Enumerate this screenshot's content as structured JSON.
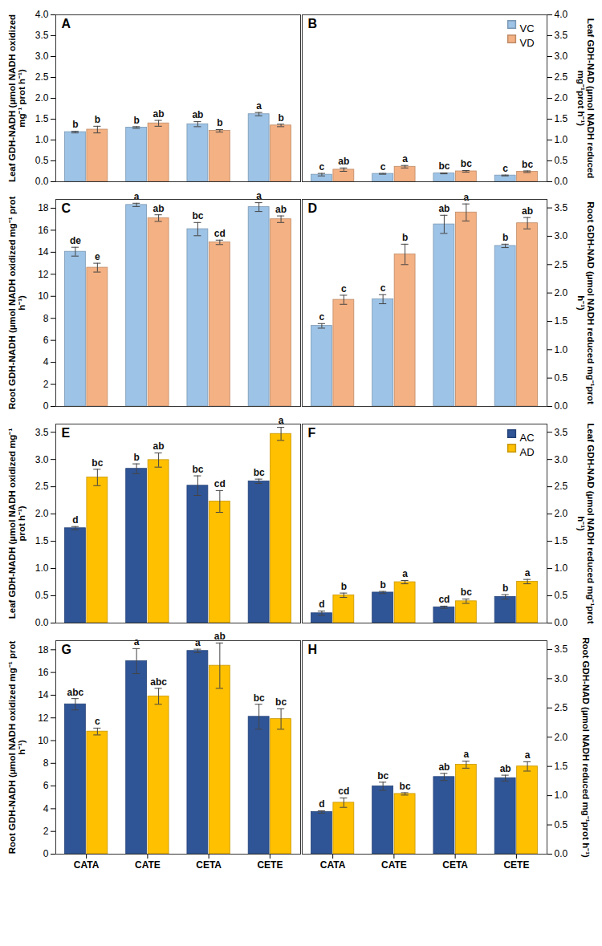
{
  "chart_data": [
    {
      "type": "bar",
      "title": "A",
      "ylabel": "Leaf GDH-NADH (µmol NADH oxidized mg⁻¹ prot h⁻¹)",
      "categories": [
        "CATA",
        "CATE",
        "CETA",
        "CETE"
      ],
      "series": [
        {
          "name": "VC",
          "color": "#9dc3e6",
          "values": [
            1.19,
            1.3,
            1.38,
            1.62
          ],
          "errors": [
            0.02,
            0.02,
            0.06,
            0.04
          ],
          "letters": [
            "b",
            "b",
            "ab",
            "a"
          ]
        },
        {
          "name": "VD",
          "color": "#f4b183",
          "values": [
            1.25,
            1.4,
            1.22,
            1.35
          ],
          "errors": [
            0.08,
            0.07,
            0.03,
            0.03
          ],
          "letters": [
            "b",
            "ab",
            "b",
            "b"
          ]
        }
      ],
      "ylim": [
        0,
        4
      ],
      "yticks": [
        {
          "value": 0,
          "label": "0.0"
        },
        0.5,
        {
          "value": 1,
          "label": "1.0"
        },
        1.5,
        {
          "value": 2,
          "label": "2.0"
        },
        2.5,
        {
          "value": 3,
          "label": "3.0"
        },
        3.5,
        {
          "value": 4,
          "label": "4.0"
        }
      ],
      "tick_labels": "y"
    },
    {
      "type": "bar",
      "title": "B",
      "ylabel": "Leaf GDH-NAD (µmol NADH reduced mg⁻¹prot h⁻¹)",
      "categories": [
        "CATA",
        "CATE",
        "CETA",
        "CETE"
      ],
      "series": [
        {
          "name": "VC",
          "color": "#9dc3e6",
          "axis": "y2",
          "values": [
            0.17,
            0.19,
            0.2,
            0.15
          ],
          "errors": [
            0.03,
            0.01,
            0.01,
            0.01
          ],
          "letters": [
            "c",
            "c",
            "bc",
            "c"
          ]
        },
        {
          "name": "VD",
          "color": "#f4b183",
          "axis": "y2",
          "values": [
            0.29,
            0.36,
            0.25,
            0.24
          ],
          "errors": [
            0.04,
            0.03,
            0.02,
            0.02
          ],
          "letters": [
            "ab",
            "a",
            "bc",
            "bc"
          ]
        }
      ],
      "y2lim": [
        0,
        4
      ],
      "y2ticks": [
        {
          "value": 0,
          "label": "0.0"
        },
        0.5,
        {
          "value": 1,
          "label": "1.0"
        },
        1.5,
        {
          "value": 2,
          "label": "2.0"
        },
        2.5,
        {
          "value": 3,
          "label": "3.0"
        },
        3.5,
        {
          "value": 4,
          "label": "4.0"
        }
      ],
      "legend": "top-right",
      "tick_labels": "y"
    },
    {
      "type": "bar",
      "title": "C",
      "ylabel": "Root GDH-NADH (µmol NADH oxidized mg⁻¹ prot h⁻¹)",
      "categories": [
        "CATA",
        "CATE",
        "CETA",
        "CETE"
      ],
      "series": [
        {
          "name": "VC",
          "color": "#9dc3e6",
          "values": [
            14.05,
            18.3,
            16.1,
            18.1
          ],
          "errors": [
            0.4,
            0.15,
            0.6,
            0.4
          ],
          "letters": [
            "de",
            "a",
            "bc",
            "a"
          ]
        },
        {
          "name": "VD",
          "color": "#f4b183",
          "values": [
            12.6,
            17.1,
            14.9,
            17.0
          ],
          "errors": [
            0.4,
            0.3,
            0.2,
            0.3
          ],
          "letters": [
            "e",
            "ab",
            "cd",
            "ab"
          ]
        }
      ],
      "ylim": [
        0,
        18.8
      ],
      "yticks": [
        0,
        2,
        4,
        6,
        8,
        10,
        12,
        14,
        16,
        18
      ],
      "tick_labels": "y"
    },
    {
      "type": "bar",
      "title": "D",
      "ylabel": "Root GDH-NAD (µmol NADH reduced mg⁻¹prot h⁻¹)",
      "categories": [
        "CATA",
        "CATE",
        "CETA",
        "CETE"
      ],
      "series": [
        {
          "name": "VC",
          "color": "#9dc3e6",
          "axis": "y2",
          "values": [
            1.42,
            1.89,
            3.21,
            2.83
          ],
          "errors": [
            0.04,
            0.08,
            0.16,
            0.03
          ],
          "letters": [
            "c",
            "c",
            "ab",
            "b"
          ]
        },
        {
          "name": "VD",
          "color": "#f4b183",
          "axis": "y2",
          "values": [
            1.88,
            2.68,
            3.42,
            3.23
          ],
          "errors": [
            0.08,
            0.18,
            0.15,
            0.1
          ],
          "letters": [
            "c",
            "b",
            "a",
            "ab"
          ]
        }
      ],
      "y2lim": [
        0,
        3.65
      ],
      "y2ticks": [
        {
          "value": 0,
          "label": "0.0"
        },
        0.5,
        {
          "value": 1,
          "label": "1.0"
        },
        1.5,
        {
          "value": 2,
          "label": "2.0"
        },
        2.5,
        {
          "value": 3,
          "label": "3.0"
        },
        3.5
      ],
      "tick_labels": "y"
    },
    {
      "type": "bar",
      "title": "E",
      "ylabel": "Leaf GDH-NADH (µmol NADH oxidized mg⁻¹ prot h⁻¹)",
      "categories": [
        "CATA",
        "CATE",
        "CETA",
        "CETE"
      ],
      "series": [
        {
          "name": "AC",
          "color": "#2f5597",
          "values": [
            1.74,
            2.83,
            2.52,
            2.6
          ],
          "errors": [
            0.03,
            0.09,
            0.18,
            0.04
          ],
          "letters": [
            "d",
            "b",
            "bc",
            "bc"
          ]
        },
        {
          "name": "AD",
          "color": "#ffc000",
          "values": [
            2.67,
            2.99,
            2.23,
            3.47
          ],
          "errors": [
            0.15,
            0.13,
            0.2,
            0.12
          ],
          "letters": [
            "bc",
            "ab",
            "cd",
            "a"
          ]
        }
      ],
      "ylim": [
        0,
        3.65
      ],
      "yticks": [
        {
          "value": 0,
          "label": "0.0"
        },
        0.5,
        {
          "value": 1,
          "label": "1.0"
        },
        1.5,
        {
          "value": 2,
          "label": "2.0"
        },
        2.5,
        {
          "value": 3,
          "label": "3.0"
        },
        3.5
      ],
      "tick_labels": "y"
    },
    {
      "type": "bar",
      "title": "F",
      "ylabel": "Leaf GDH-NAD (µmol NADH reduced mg⁻¹prot h⁻¹)",
      "categories": [
        "CATA",
        "CATE",
        "CETA",
        "CETE"
      ],
      "series": [
        {
          "name": "AC",
          "color": "#2f5597",
          "axis": "y2",
          "values": [
            0.18,
            0.56,
            0.29,
            0.48
          ],
          "errors": [
            0.04,
            0.02,
            0.02,
            0.04
          ],
          "letters": [
            "d",
            "b",
            "cd",
            "b"
          ]
        },
        {
          "name": "AD",
          "color": "#ffc000",
          "axis": "y2",
          "values": [
            0.51,
            0.75,
            0.4,
            0.76
          ],
          "errors": [
            0.04,
            0.03,
            0.04,
            0.04
          ],
          "letters": [
            "b",
            "a",
            "bc",
            "a"
          ]
        }
      ],
      "y2lim": [
        0,
        3.65
      ],
      "y2ticks": [
        {
          "value": 0,
          "label": "0.0"
        },
        0.5,
        {
          "value": 1,
          "label": "1.0"
        },
        1.5,
        {
          "value": 2,
          "label": "2.0"
        },
        2.5,
        {
          "value": 3,
          "label": "3.0"
        },
        3.5
      ],
      "legend": "top-right",
      "tick_labels": "y"
    },
    {
      "type": "bar",
      "title": "G",
      "ylabel": "Root GDH-NADH (µmol NADH oxidized mg⁻¹ prot h⁻¹)",
      "categories": [
        "CATA",
        "CATE",
        "CETA",
        "CETE"
      ],
      "series": [
        {
          "name": "AC",
          "color": "#2f5597",
          "values": [
            13.2,
            17.0,
            17.9,
            12.1
          ],
          "errors": [
            0.5,
            1.1,
            0.15,
            1.1
          ],
          "letters": [
            "abc",
            "a",
            "a",
            "bc"
          ]
        },
        {
          "name": "AD",
          "color": "#ffc000",
          "values": [
            10.8,
            13.9,
            16.6,
            11.9
          ],
          "errors": [
            0.3,
            0.7,
            2.0,
            0.9
          ],
          "letters": [
            "c",
            "abc",
            "ab",
            "bc"
          ]
        }
      ],
      "ylim": [
        0,
        18.8
      ],
      "yticks": [
        0,
        2,
        4,
        6,
        8,
        10,
        12,
        14,
        16,
        18
      ]
    },
    {
      "type": "bar",
      "title": "H",
      "ylabel": "Root GDH-NAD (µmol NADH reduced mg⁻¹prot h⁻¹)",
      "categories": [
        "CATA",
        "CATE",
        "CETA",
        "CETE"
      ],
      "series": [
        {
          "name": "AC",
          "color": "#2f5597",
          "axis": "y2",
          "values": [
            0.72,
            1.16,
            1.32,
            1.3
          ],
          "errors": [
            0.02,
            0.07,
            0.06,
            0.05
          ],
          "letters": [
            "d",
            "bc",
            "ab",
            "ab"
          ]
        },
        {
          "name": "AD",
          "color": "#ffc000",
          "axis": "y2",
          "values": [
            0.88,
            1.03,
            1.53,
            1.5
          ],
          "errors": [
            0.08,
            0.02,
            0.06,
            0.08
          ],
          "letters": [
            "cd",
            "bc",
            "a",
            "a"
          ]
        }
      ],
      "y2lim": [
        0,
        3.65
      ],
      "y2ticks": [
        {
          "value": 0,
          "label": "0.0"
        },
        0.5,
        {
          "value": 1,
          "label": "1.0"
        },
        1.5,
        {
          "value": 2,
          "label": "2.0"
        },
        2.5,
        {
          "value": 3,
          "label": "3.0"
        },
        3.5
      ]
    }
  ]
}
